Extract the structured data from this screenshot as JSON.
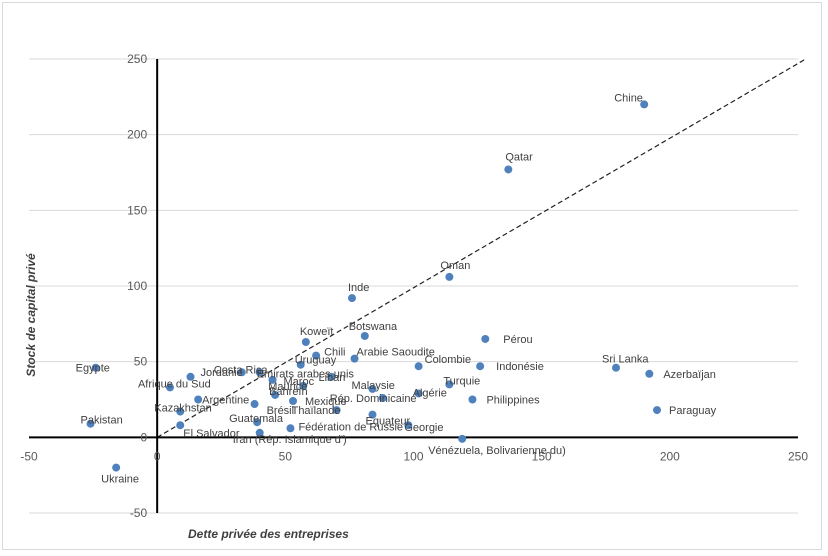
{
  "chart_data": {
    "type": "scatter",
    "title": "",
    "xlabel": "Dette privée des entreprises",
    "ylabel": "Stock de capital privé",
    "xlim": [
      -50,
      250
    ],
    "ylim": [
      -50,
      250
    ],
    "xticks": [
      "-50",
      "0",
      "50",
      "100",
      "150",
      "200",
      "250"
    ],
    "yticks": [
      "-50",
      "0",
      "50",
      "100",
      "150",
      "200",
      "250"
    ],
    "grid": "horizontal",
    "legend": "none",
    "point_color": "#4f81bd",
    "trendline": {
      "style": "dashed",
      "from": [
        0,
        0
      ],
      "to": [
        253,
        250
      ]
    },
    "points": [
      {
        "name": "Chine",
        "x": 190,
        "y": 220
      },
      {
        "name": "Qatar",
        "x": 137,
        "y": 177
      },
      {
        "name": "Oman",
        "x": 114,
        "y": 106
      },
      {
        "name": "Inde",
        "x": 76,
        "y": 92
      },
      {
        "name": "Pérou",
        "x": 128,
        "y": 65
      },
      {
        "name": "Koweït",
        "x": 58,
        "y": 63
      },
      {
        "name": "Botswana",
        "x": 81,
        "y": 67
      },
      {
        "name": "Chili",
        "x": 62,
        "y": 54
      },
      {
        "name": "Arabie Saoudite",
        "x": 77,
        "y": 52
      },
      {
        "name": "Uruguay",
        "x": 56,
        "y": 48
      },
      {
        "name": "Colombie",
        "x": 102,
        "y": 47
      },
      {
        "name": "Indonésie",
        "x": 126,
        "y": 47
      },
      {
        "name": "Sri Lanka",
        "x": 179,
        "y": 46
      },
      {
        "name": "Azerbaïjan",
        "x": 192,
        "y": 42
      },
      {
        "name": "Egypte",
        "x": -24,
        "y": 46
      },
      {
        "name": "Jordanie",
        "x": 13,
        "y": 40
      },
      {
        "name": "Costa Rica",
        "x": 33,
        "y": 43
      },
      {
        "name": "Emirats arabes unis",
        "x": 40,
        "y": 43
      },
      {
        "name": "Liban",
        "x": 68,
        "y": 40
      },
      {
        "name": "Maroc",
        "x": 45,
        "y": 38
      },
      {
        "name": "Afrique du Sud",
        "x": 5,
        "y": 33
      },
      {
        "name": "Maurice",
        "x": 57,
        "y": 34
      },
      {
        "name": "Malaysie",
        "x": 84,
        "y": 32
      },
      {
        "name": "Turquie",
        "x": 114,
        "y": 35
      },
      {
        "name": "Algérie",
        "x": 102,
        "y": 29
      },
      {
        "name": "Bahreïn",
        "x": 46,
        "y": 28
      },
      {
        "name": "Argentine",
        "x": 16,
        "y": 25
      },
      {
        "name": "Mexique",
        "x": 53,
        "y": 24
      },
      {
        "name": "Rép. Dominicaine",
        "x": 88,
        "y": 26
      },
      {
        "name": "Philippines",
        "x": 123,
        "y": 25
      },
      {
        "name": "Brésil",
        "x": 38,
        "y": 22
      },
      {
        "name": "Kazakhstan",
        "x": 9,
        "y": 17
      },
      {
        "name": "Thaïlande",
        "x": 70,
        "y": 18
      },
      {
        "name": "Paraguay",
        "x": 195,
        "y": 18
      },
      {
        "name": "Pakistan",
        "x": -26,
        "y": 9
      },
      {
        "name": "Equateur",
        "x": 84,
        "y": 15
      },
      {
        "name": "Guatemala",
        "x": 39,
        "y": 10
      },
      {
        "name": "Georgie",
        "x": 98,
        "y": 8
      },
      {
        "name": "El Salvador",
        "x": 9,
        "y": 8
      },
      {
        "name": "Fédération de Russie",
        "x": 52,
        "y": 6
      },
      {
        "name": "Iran (Rép. Islamique d')",
        "x": 40,
        "y": 3
      },
      {
        "name": "Vénézuela, Bolivarienne du)",
        "x": 119,
        "y": -1
      },
      {
        "name": "Ukraine",
        "x": -16,
        "y": -20
      }
    ]
  }
}
